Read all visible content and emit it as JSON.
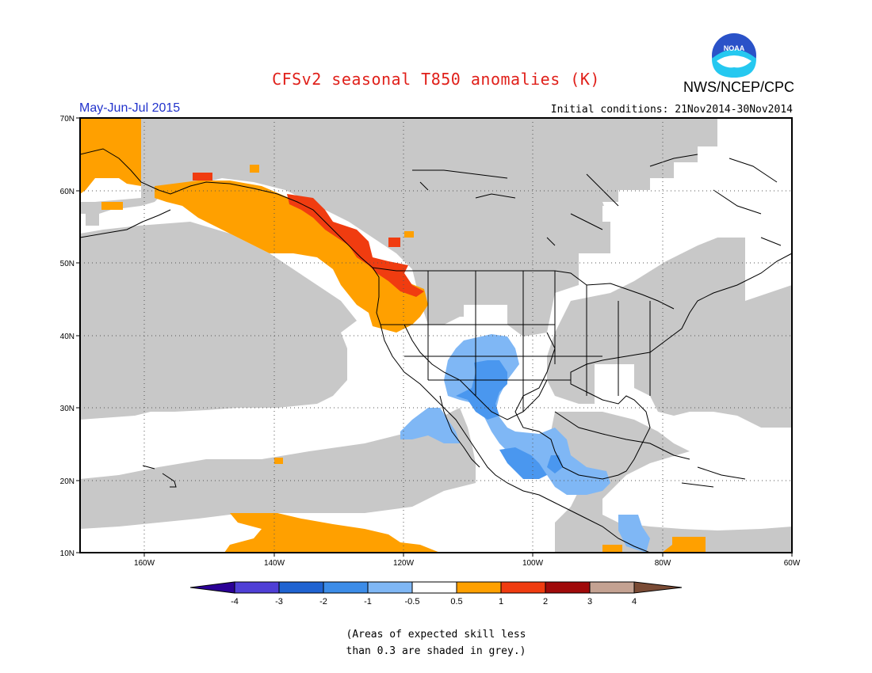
{
  "header": {
    "title": "CFSv2 seasonal T850 anomalies (K)",
    "agency": "NWS/NCEP/CPC",
    "logo_text": "NOAA",
    "season": "May-Jun-Jul 2015",
    "initial_conditions": "Initial conditions: 21Nov2014-30Nov2014"
  },
  "map": {
    "lon_range": [
      -170,
      -60
    ],
    "lat_range": [
      10,
      70
    ],
    "lat_ticks": [
      "10N",
      "20N",
      "30N",
      "40N",
      "50N",
      "60N",
      "70N"
    ],
    "lon_ticks": [
      "160W",
      "140W",
      "120W",
      "100W",
      "80W",
      "60W"
    ],
    "colors": {
      "grey_low_skill": "#c8c8c8",
      "light_blue": "#7fb7f5",
      "blue": "#4a97ef",
      "orange": "#ffa000",
      "red_orange": "#f03c10"
    }
  },
  "colorbar": {
    "ticks": [
      "-4",
      "-3",
      "-2",
      "-1",
      "-0.5",
      "0.5",
      "1",
      "2",
      "3",
      "4"
    ],
    "colors": [
      "#2b0096",
      "#4f3fd6",
      "#1f63d1",
      "#3c8ce8",
      "#7fb7f5",
      "#ffffff",
      "#ffa000",
      "#f03c10",
      "#a00a0a",
      "#c4a292",
      "#7a4b35"
    ]
  },
  "footnote": {
    "line1": "(Areas of expected skill less",
    "line2": "than 0.3 are shaded in grey.)"
  }
}
